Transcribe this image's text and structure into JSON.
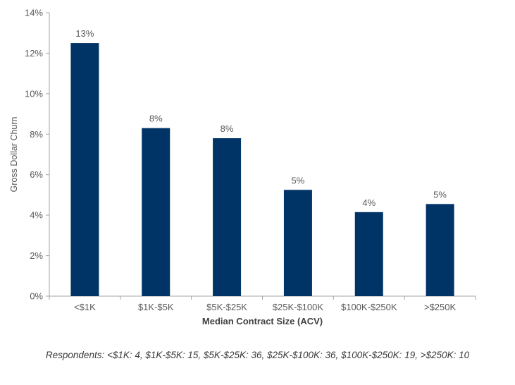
{
  "chart_data": {
    "type": "bar",
    "title": "",
    "xlabel": "Median Contract Size (ACV)",
    "ylabel": "Gross Dollar Churn",
    "categories": [
      "<$1K",
      "$1K-$5K",
      "$5K-$25K",
      "$25K-$100K",
      "$100K-$250K",
      ">$250K"
    ],
    "values": [
      12.5,
      8.3,
      7.8,
      5.25,
      4.15,
      4.55
    ],
    "data_labels": [
      "13%",
      "8%",
      "8%",
      "5%",
      "4%",
      "5%"
    ],
    "ylim": [
      0,
      14
    ],
    "yticks": [
      0,
      2,
      4,
      6,
      8,
      10,
      12,
      14
    ],
    "ytick_labels": [
      "0%",
      "2%",
      "4%",
      "6%",
      "8%",
      "10%",
      "12%",
      "14%"
    ],
    "grid": false,
    "legend": "none",
    "bar_color": "#003366",
    "axis_color": "#a6a6a6",
    "text_color": "#595959"
  },
  "footnote": "Respondents: <$1K: 4, $1K-$5K: 15, $5K-$25K: 36, $25K-$100K: 36, $100K-$250K: 19, >$250K: 10"
}
